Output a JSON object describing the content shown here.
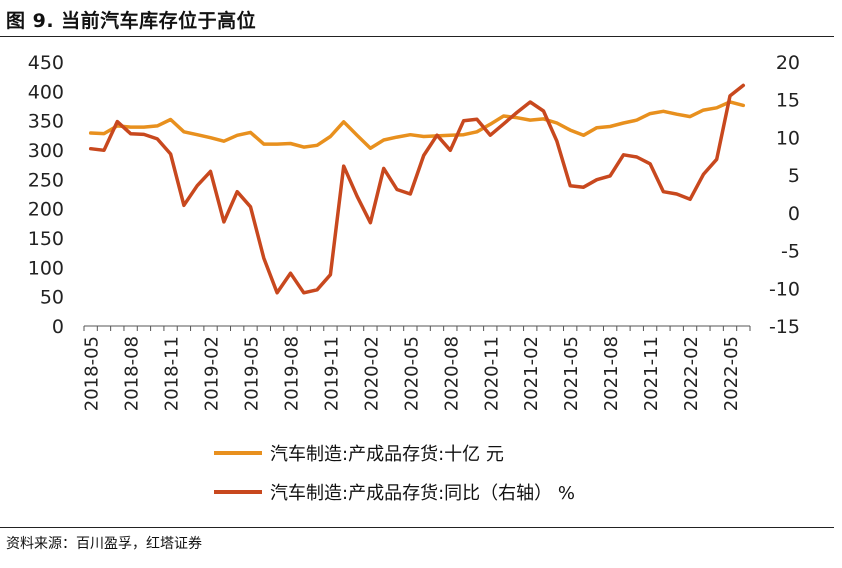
{
  "title": "图 9. 当前汽车库存位于高位",
  "source": "资料来源：百川盈孚，红塔证券",
  "chart_data": {
    "type": "line",
    "x": [
      "2018-05",
      "2018-06",
      "2018-07",
      "2018-08",
      "2018-09",
      "2018-10",
      "2018-11",
      "2018-12",
      "2019-01",
      "2019-02",
      "2019-03",
      "2019-04",
      "2019-05",
      "2019-06",
      "2019-07",
      "2019-08",
      "2019-09",
      "2019-10",
      "2019-11",
      "2019-12",
      "2020-01",
      "2020-02",
      "2020-03",
      "2020-04",
      "2020-05",
      "2020-06",
      "2020-07",
      "2020-08",
      "2020-09",
      "2020-10",
      "2020-11",
      "2020-12",
      "2021-01",
      "2021-02",
      "2021-03",
      "2021-04",
      "2021-05",
      "2021-06",
      "2021-07",
      "2021-08",
      "2021-09",
      "2021-10",
      "2021-11",
      "2021-12",
      "2022-01",
      "2022-02",
      "2022-03",
      "2022-04",
      "2022-05",
      "2022-06"
    ],
    "x_tick_labels": [
      "2018-05",
      "2018-08",
      "2018-11",
      "2019-02",
      "2019-05",
      "2019-08",
      "2019-11",
      "2020-02",
      "2020-05",
      "2020-08",
      "2020-11",
      "2021-02",
      "2021-05",
      "2021-08",
      "2021-11",
      "2022-02",
      "2022-05"
    ],
    "y_left": {
      "min": 0,
      "max": 450,
      "ticks": [
        "0",
        "50",
        "100",
        "150",
        "200",
        "250",
        "300",
        "350",
        "400",
        "450"
      ]
    },
    "y_right": {
      "min": -15,
      "max": 20,
      "ticks": [
        "-15",
        "-10",
        "-5",
        "0",
        "5",
        "10",
        "15",
        "20"
      ]
    },
    "series": [
      {
        "name": "汽车制造:产成品存货:十亿 元",
        "axis": "left",
        "color": "#E8901E",
        "values": [
          329,
          328,
          341,
          339,
          339,
          341,
          352,
          331,
          326,
          321,
          315,
          325,
          330,
          310,
          310,
          311,
          305,
          308,
          323,
          348,
          325,
          303,
          317,
          322,
          326,
          323,
          324,
          325,
          326,
          331,
          344,
          358,
          355,
          351,
          353,
          346,
          334,
          325,
          338,
          340,
          346,
          351,
          362,
          366,
          361,
          357,
          368,
          372,
          382,
          376
        ]
      },
      {
        "name": "汽车制造:产成品存货:同比（右轴） %",
        "axis": "right",
        "color": "#C8481E",
        "values": [
          8.5,
          8.3,
          12.1,
          10.5,
          10.4,
          9.8,
          7.8,
          1.0,
          3.6,
          5.5,
          -1.2,
          2.8,
          0.8,
          -6.0,
          -10.6,
          -8.0,
          -10.6,
          -10.2,
          -8.2,
          6.2,
          2.2,
          -1.3,
          5.9,
          3.1,
          2.5,
          7.6,
          10.3,
          8.3,
          12.2,
          12.4,
          10.3,
          11.8,
          13.3,
          14.7,
          13.5,
          9.5,
          3.6,
          3.4,
          4.4,
          4.9,
          7.7,
          7.4,
          6.5,
          2.8,
          2.5,
          1.8,
          5.1,
          7.1,
          15.5,
          16.9
        ]
      }
    ]
  }
}
